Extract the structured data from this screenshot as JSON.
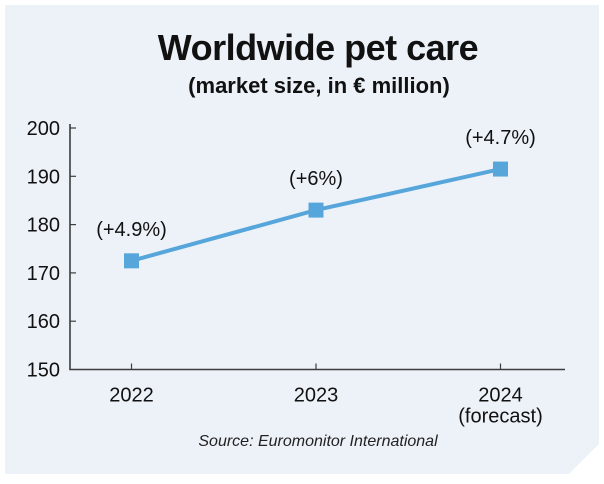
{
  "header": {
    "title": "Worldwide pet care",
    "subtitle": "(market size, in € million)"
  },
  "footer": {
    "source": "Source: Euromonitor International"
  },
  "colors": {
    "accent": "#57a6db",
    "card_background": "#edf2f9",
    "page_background": "#ffffff",
    "axis": "#3d3d3d",
    "text": "#111111"
  },
  "chart_data": {
    "type": "line",
    "title": "Worldwide pet care",
    "subtitle": "(market size, in € million)",
    "categories": [
      "2022",
      "2023",
      "2024"
    ],
    "category_sublabels": [
      "",
      "",
      "(forecast)"
    ],
    "series": [
      {
        "name": "market size (€ million)",
        "values": [
          172.5,
          183,
          191.5
        ]
      }
    ],
    "point_labels": [
      "(+4.9%)",
      "(+6%)",
      "(+4.7%)"
    ],
    "ylim": [
      150,
      200
    ],
    "yticks": [
      150,
      160,
      170,
      180,
      190,
      200
    ],
    "grid": false,
    "legend": "none",
    "marker": "square",
    "line_color": "#57a6db",
    "source": "Source: Euromonitor International"
  }
}
